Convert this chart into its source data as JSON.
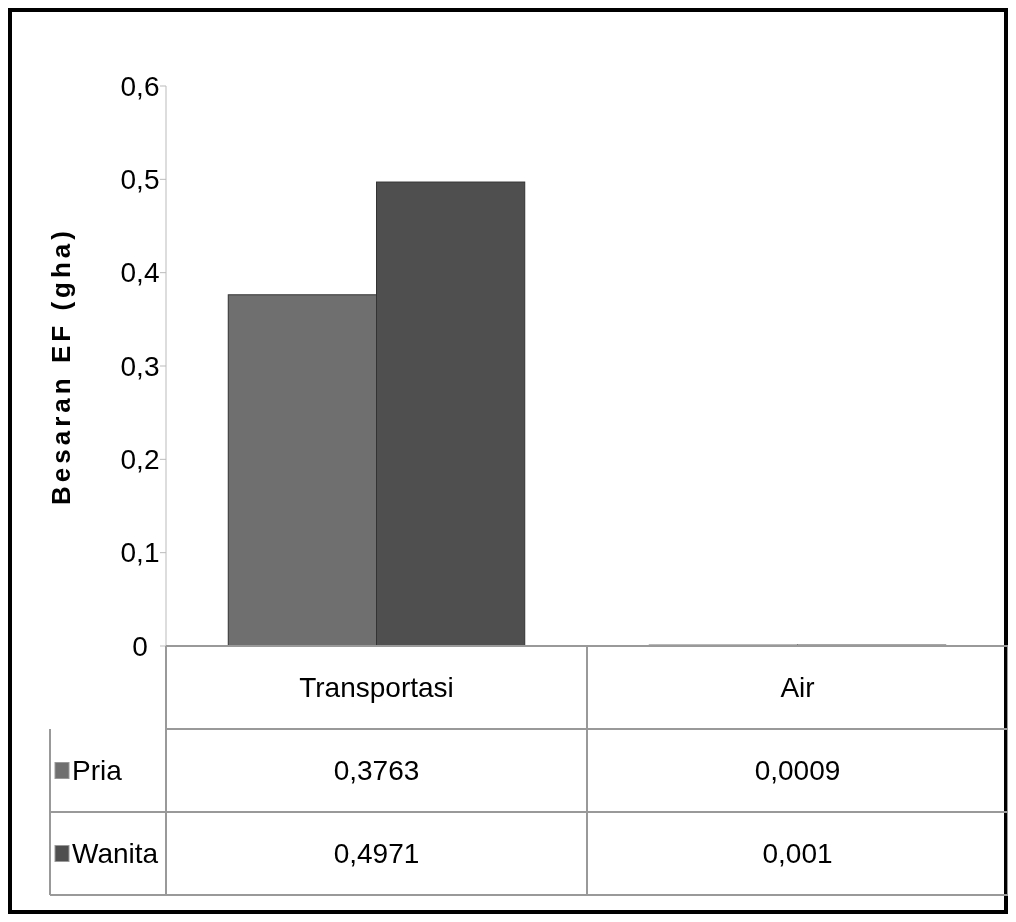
{
  "chart_data": {
    "type": "bar",
    "ylabel": "Besaran EF (gha)",
    "categories": [
      "Transportasi",
      "Air"
    ],
    "series": [
      {
        "name": "Pria",
        "color": "#6f6f6f",
        "values": [
          0.3763,
          0.0009
        ],
        "value_labels": [
          "0,3763",
          "0,0009"
        ]
      },
      {
        "name": "Wanita",
        "color": "#4f4f4f",
        "values": [
          0.4971,
          0.001
        ],
        "value_labels": [
          "0,4971",
          "0,001"
        ]
      }
    ],
    "ylim": [
      0,
      0.6
    ],
    "yticks": [
      0,
      {
        "value": 0.1,
        "label": "0,1"
      },
      {
        "value": 0.2,
        "label": "0,2"
      },
      {
        "value": 0.3,
        "label": "0,3"
      },
      {
        "value": 0.4,
        "label": "0,4"
      },
      {
        "value": 0.5,
        "label": "0,5"
      },
      {
        "value": 0.6,
        "label": "0,6"
      }
    ],
    "legend": "bottom left",
    "grid": false
  }
}
